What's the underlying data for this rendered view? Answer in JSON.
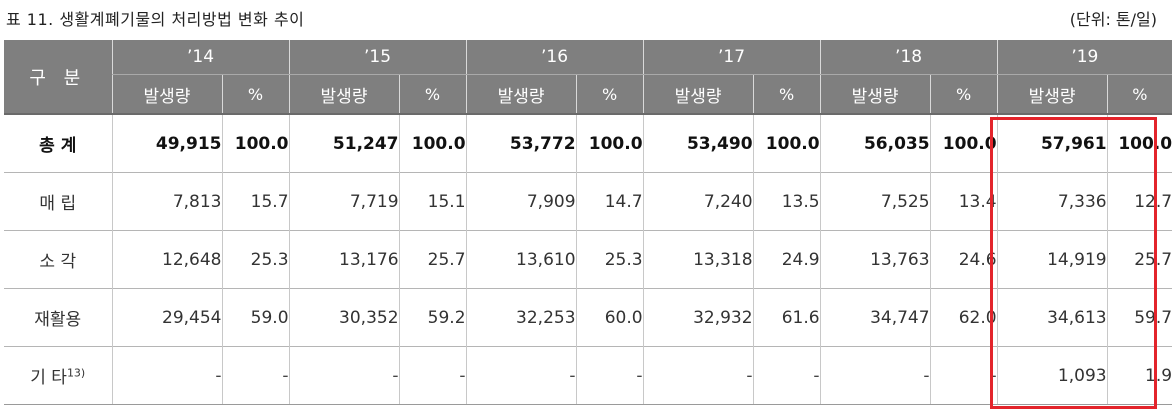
{
  "caption": "표 11. 생활계폐기물의 처리방법 변화 추이",
  "unit": "(단위: 톤/일)",
  "header": {
    "category": "구 분",
    "years": [
      "’14",
      "’15",
      "’16",
      "’17",
      "’18",
      "’19"
    ],
    "amount_label": "발생량",
    "percent_label": "%"
  },
  "rows": [
    {
      "label": "총  계",
      "footnote": "",
      "cells": [
        "49,915",
        "100.0",
        "51,247",
        "100.0",
        "53,772",
        "100.0",
        "53,490",
        "100.0",
        "56,035",
        "100.0",
        "57,961",
        "100.0"
      ]
    },
    {
      "label": "매  립",
      "footnote": "",
      "cells": [
        "7,813",
        "15.7",
        "7,719",
        "15.1",
        "7,909",
        "14.7",
        "7,240",
        "13.5",
        "7,525",
        "13.4",
        "7,336",
        "12.7"
      ]
    },
    {
      "label": "소  각",
      "footnote": "",
      "cells": [
        "12,648",
        "25.3",
        "13,176",
        "25.7",
        "13,610",
        "25.3",
        "13,318",
        "24.9",
        "13,763",
        "24.6",
        "14,919",
        "25.7"
      ]
    },
    {
      "label": "재활용",
      "footnote": "",
      "cells": [
        "29,454",
        "59.0",
        "30,352",
        "59.2",
        "32,253",
        "60.0",
        "32,932",
        "61.6",
        "34,747",
        "62.0",
        "34,613",
        "59.7"
      ]
    },
    {
      "label": "기 타",
      "footnote": "13)",
      "cells": [
        "-",
        "-",
        "-",
        "-",
        "-",
        "-",
        "-",
        "-",
        "-",
        "-",
        "1,093",
        "1.9"
      ]
    }
  ],
  "highlight_color": "#e3242b",
  "header_color": "#7f7f7f"
}
